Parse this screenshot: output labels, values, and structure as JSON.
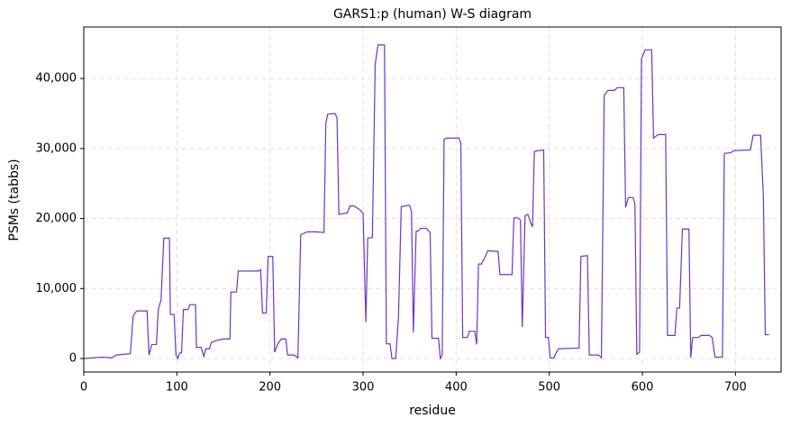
{
  "chart_data": {
    "type": "line",
    "title": "GARS1:p (human) W-S diagram",
    "xlabel": "residue",
    "ylabel": "PSMs (tabbs)",
    "color": "#6a35d0",
    "grid": true,
    "x": [
      0,
      20,
      30,
      35,
      50,
      53,
      55,
      57,
      68,
      70,
      73,
      78,
      80,
      83,
      86,
      92,
      93,
      97,
      99,
      101,
      103,
      105,
      107,
      112,
      114,
      120,
      121,
      126,
      129,
      131,
      135,
      137,
      143,
      150,
      157,
      158,
      164,
      166,
      188,
      190,
      192,
      196,
      198,
      203,
      205,
      208,
      212,
      217,
      219,
      226,
      230,
      233,
      240,
      250,
      258,
      260,
      262,
      270,
      272,
      274,
      283,
      286,
      290,
      296,
      300,
      303,
      305,
      310,
      313,
      316,
      323,
      325,
      329,
      331,
      335,
      338,
      341,
      350,
      352,
      354,
      357,
      359,
      362,
      368,
      372,
      374,
      381,
      383,
      385,
      387,
      390,
      403,
      405,
      407,
      412,
      414,
      420,
      422,
      424,
      427,
      430,
      434,
      445,
      447,
      460,
      462,
      466,
      469,
      471,
      474,
      477,
      480,
      482,
      484,
      494,
      496,
      499,
      501,
      505,
      508,
      510,
      532,
      534,
      541,
      543,
      553,
      556,
      559,
      563,
      570,
      573,
      580,
      582,
      585,
      590,
      592,
      594,
      597,
      599,
      603,
      610,
      612,
      617,
      625,
      627,
      635,
      637,
      640,
      643,
      650,
      652,
      654,
      660,
      663,
      672,
      675,
      678,
      686,
      688,
      695,
      698,
      716,
      719,
      727,
      730,
      732,
      736
    ],
    "values": [
      0,
      200,
      100,
      500,
      700,
      6000,
      6500,
      6800,
      6800,
      500,
      2000,
      2000,
      7000,
      8400,
      17200,
      17200,
      6300,
      6300,
      500,
      0,
      800,
      800,
      7000,
      7000,
      7700,
      7700,
      1600,
      1600,
      300,
      1400,
      1400,
      2300,
      2600,
      2800,
      2800,
      9500,
      9500,
      12500,
      12500,
      12700,
      6500,
      6500,
      14600,
      14600,
      900,
      2000,
      2800,
      2800,
      500,
      500,
      100,
      17700,
      18100,
      18100,
      18000,
      33600,
      34900,
      35000,
      34400,
      20600,
      20800,
      21800,
      21800,
      21300,
      20800,
      5200,
      17200,
      17300,
      42000,
      44800,
      44800,
      2100,
      2100,
      0,
      0,
      5800,
      21700,
      21900,
      21000,
      3700,
      18200,
      18200,
      18600,
      18600,
      18000,
      2900,
      2900,
      0,
      500,
      31300,
      31500,
      31500,
      30700,
      3000,
      3000,
      3900,
      3900,
      2000,
      13500,
      13500,
      14200,
      15400,
      15300,
      12000,
      12000,
      20100,
      20100,
      19800,
      4500,
      20400,
      20600,
      19400,
      18800,
      29600,
      29800,
      3000,
      3000,
      100,
      100,
      1000,
      1400,
      1500,
      14600,
      14700,
      500,
      500,
      100,
      37600,
      38300,
      38300,
      38700,
      38700,
      21600,
      23000,
      23000,
      22100,
      600,
      900,
      42800,
      44100,
      44100,
      31500,
      32000,
      32000,
      3300,
      3300,
      7200,
      7200,
      18500,
      18500,
      100,
      3000,
      3000,
      3300,
      3300,
      3000,
      200,
      200,
      29300,
      29400,
      29700,
      29800,
      31900,
      31900,
      23000,
      3400,
      3400
    ],
    "xlim": [
      0,
      749
    ],
    "ylim": [
      -1930,
      47360
    ],
    "xticks": [
      0,
      100,
      200,
      300,
      400,
      500,
      600,
      700
    ],
    "yticks": [
      0,
      {
        "value": 10000,
        "label": "10,000"
      },
      {
        "value": 20000,
        "label": "20,000"
      },
      {
        "value": 30000,
        "label": "30,000"
      },
      {
        "value": 40000,
        "label": "40,000"
      }
    ]
  }
}
